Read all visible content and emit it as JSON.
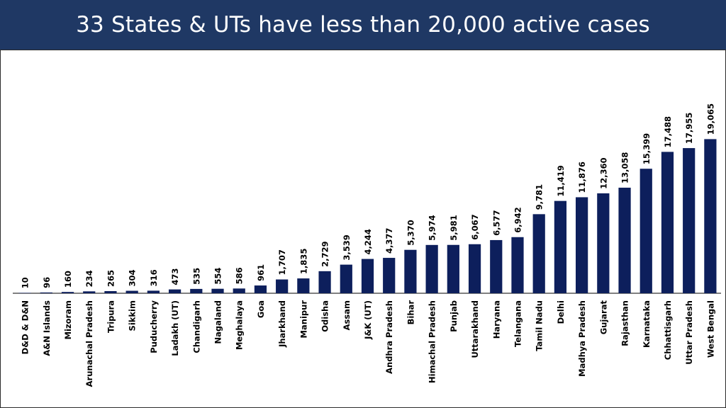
{
  "header": {
    "title": "33 States & UTs have less than 20,000 active cases"
  },
  "colors": {
    "header_bg": "#1f3864",
    "bar": "#0d1f5c",
    "title_text": "#ffffff"
  },
  "chart_data": {
    "type": "bar",
    "title": "33 States & UTs have less than 20,000 active cases",
    "xlabel": "",
    "ylabel": "",
    "ylim": [
      0,
      21000
    ],
    "grid": false,
    "categories": [
      "D&D & D&N",
      "A&N Islands",
      "Mizoram",
      "Arunachal Pradesh",
      "Tripura",
      "Sikkim",
      "Puducherry",
      "Ladakh (UT)",
      "Chandigarh",
      "Nagaland",
      "Meghalaya",
      "Goa",
      "Jharkhand",
      "Manipur",
      "Odisha",
      "Assam",
      "J&K (UT)",
      "Andhra Pradesh",
      "Bihar",
      "Himachal Pradesh",
      "Punjab",
      "Uttarakhand",
      "Haryana",
      "Telangana",
      "Tamil Nadu",
      "Delhi",
      "Madhya Pradesh",
      "Gujarat",
      "Rajasthan",
      "Karnataka",
      "Chhattisgarh",
      "Uttar Pradesh",
      "West Bengal"
    ],
    "values": [
      10,
      96,
      160,
      234,
      265,
      304,
      316,
      473,
      535,
      554,
      586,
      961,
      1707,
      1835,
      2729,
      3539,
      4244,
      4377,
      5370,
      5974,
      5981,
      6067,
      6577,
      6942,
      9781,
      11419,
      11876,
      12360,
      13058,
      15399,
      17488,
      17955,
      19065
    ],
    "value_labels": [
      "10",
      "96",
      "160",
      "234",
      "265",
      "304",
      "316",
      "473",
      "535",
      "554",
      "586",
      "961",
      "1,707",
      "1,835",
      "2,729",
      "3,539",
      "4,244",
      "4,377",
      "5,370",
      "5,974",
      "5,981",
      "6,067",
      "6,577",
      "6,942",
      "9,781",
      "11,419",
      "11,876",
      "12,360",
      "13,058",
      "15,399",
      "17,488",
      "17,955",
      "19,065"
    ]
  }
}
